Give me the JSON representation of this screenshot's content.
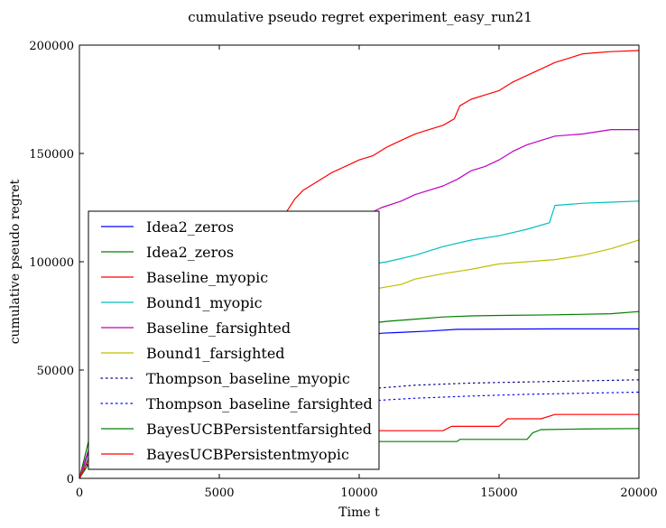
{
  "chart_data": {
    "type": "line",
    "title": "cumulative pseudo regret experiment_easy_run21",
    "xlabel": "Time t",
    "ylabel": "cumulative pseudo regret",
    "xlim": [
      0,
      20000
    ],
    "ylim": [
      0,
      200000
    ],
    "xticks": [
      0,
      5000,
      10000,
      15000,
      20000
    ],
    "xtick_labels": [
      "0",
      "5000",
      "10000",
      "15000",
      "20000"
    ],
    "yticks": [
      0,
      50000,
      100000,
      150000,
      200000
    ],
    "ytick_labels": [
      "0",
      "50000",
      "100000",
      "150000",
      "200000"
    ],
    "grid": false,
    "legend_placement": "lower-left",
    "series": [
      {
        "name": "Idea2_zeros",
        "color": "#0000ff",
        "style": "solid",
        "x": [
          0,
          400,
          1000,
          2000,
          4000,
          6000,
          8000,
          9000,
          10000,
          10800,
          11500,
          12500,
          13500,
          15000,
          17000,
          20000
        ],
        "y": [
          0,
          15000,
          26000,
          35000,
          45000,
          52000,
          58000,
          62000,
          65000,
          67000,
          67400,
          68000,
          68800,
          68900,
          69000,
          69000
        ]
      },
      {
        "name": "Idea2_zeros",
        "color": "#008000",
        "style": "solid",
        "x": [
          0,
          400,
          1000,
          2000,
          4000,
          6000,
          8000,
          9000,
          10000,
          11000,
          12000,
          13000,
          14000,
          15000,
          17000,
          19000,
          20000
        ],
        "y": [
          0,
          21000,
          32000,
          42000,
          52000,
          60000,
          66000,
          69000,
          71000,
          72500,
          73500,
          74500,
          75000,
          75200,
          75500,
          76000,
          77000
        ]
      },
      {
        "name": "Baseline_myopic",
        "color": "#ff0000",
        "style": "solid",
        "x": [
          0,
          1000,
          2500,
          4000,
          5500,
          7000,
          7400,
          7700,
          8000,
          8500,
          9000,
          9500,
          10000,
          10500,
          11000,
          11500,
          12000,
          12500,
          13000,
          13400,
          13600,
          14000,
          14500,
          15000,
          15500,
          16000,
          16500,
          17000,
          17500,
          18000,
          18500,
          19000,
          20000
        ],
        "y": [
          0,
          40000,
          65000,
          85000,
          100000,
          115000,
          123000,
          129000,
          133000,
          137000,
          141000,
          144000,
          147000,
          149000,
          153000,
          156000,
          159000,
          161000,
          163000,
          166000,
          172000,
          175000,
          177000,
          179000,
          183000,
          186000,
          189000,
          192000,
          194000,
          196000,
          196500,
          197000,
          197500
        ]
      },
      {
        "name": "Bound1_myopic",
        "color": "#00bfbf",
        "style": "solid",
        "x": [
          0,
          1000,
          2500,
          4000,
          6000,
          8000,
          9000,
          10000,
          11000,
          12000,
          13000,
          14000,
          15000,
          16000,
          16800,
          17000,
          18000,
          19000,
          20000
        ],
        "y": [
          0,
          30000,
          50000,
          65000,
          80000,
          90000,
          95000,
          98000,
          100000,
          103000,
          107000,
          110000,
          112000,
          115000,
          118000,
          126000,
          127000,
          127500,
          128000
        ]
      },
      {
        "name": "Baseline_farsighted",
        "color": "#bf00bf",
        "style": "solid",
        "x": [
          0,
          1000,
          2500,
          4000,
          6000,
          8000,
          9000,
          10000,
          10800,
          11500,
          12000,
          12500,
          13000,
          13500,
          14000,
          14500,
          15000,
          15500,
          16000,
          16500,
          17000,
          18000,
          18500,
          19000,
          20000
        ],
        "y": [
          0,
          40000,
          60000,
          78000,
          95000,
          108000,
          115000,
          120000,
          125000,
          128000,
          131000,
          133000,
          135000,
          138000,
          142000,
          144000,
          147000,
          151000,
          154000,
          156000,
          158000,
          159000,
          160000,
          161000,
          161000
        ]
      },
      {
        "name": "Bound1_farsighted",
        "color": "#bfbf00",
        "style": "solid",
        "x": [
          0,
          1000,
          2500,
          4000,
          6000,
          8000,
          9000,
          10000,
          10800,
          11500,
          12000,
          13000,
          14000,
          15000,
          16000,
          17000,
          18000,
          19000,
          20000
        ],
        "y": [
          0,
          28000,
          45000,
          58000,
          70000,
          79000,
          83000,
          86000,
          88000,
          89500,
          92000,
          94500,
          96500,
          99000,
          100000,
          101000,
          103000,
          106000,
          110000
        ]
      },
      {
        "name": "Thompson_baseline_myopic",
        "color": "#000080",
        "style": "dotted",
        "x": [
          0,
          300,
          1000,
          2000,
          4000,
          6000,
          8000,
          10000,
          12000,
          14000,
          16000,
          18000,
          20000
        ],
        "y": [
          0,
          8000,
          15000,
          20000,
          26000,
          32000,
          37000,
          41000,
          43000,
          44000,
          44500,
          45000,
          45500
        ]
      },
      {
        "name": "Thompson_baseline_farsighted",
        "color": "#0000ff",
        "style": "dotted",
        "x": [
          0,
          300,
          1000,
          2000,
          4000,
          6000,
          8000,
          10000,
          12000,
          14000,
          16000,
          18000,
          20000
        ],
        "y": [
          0,
          7000,
          13000,
          18000,
          23000,
          28000,
          32000,
          35500,
          37000,
          38000,
          38800,
          39300,
          39800
        ]
      },
      {
        "name": "BayesUCBPersistentfarsighted",
        "color": "#008000",
        "style": "solid",
        "x": [
          0,
          300,
          1000,
          2000,
          4000,
          6000,
          8000,
          10000,
          12000,
          13500,
          13600,
          15000,
          16000,
          16200,
          16500,
          18000,
          20000
        ],
        "y": [
          0,
          6000,
          9000,
          11000,
          13000,
          15000,
          16500,
          17000,
          17000,
          17000,
          18000,
          18000,
          18000,
          21000,
          22500,
          22800,
          23000
        ]
      },
      {
        "name": "BayesUCBPersistentmyopic",
        "color": "#ff0000",
        "style": "solid",
        "x": [
          0,
          300,
          1000,
          2000,
          4000,
          6000,
          8000,
          10000,
          13000,
          13300,
          14000,
          15000,
          15300,
          16500,
          17000,
          20000
        ],
        "y": [
          0,
          8000,
          12000,
          14000,
          16000,
          18500,
          21000,
          22000,
          22000,
          24000,
          24000,
          24000,
          27500,
          27500,
          29500,
          29500
        ]
      }
    ]
  }
}
